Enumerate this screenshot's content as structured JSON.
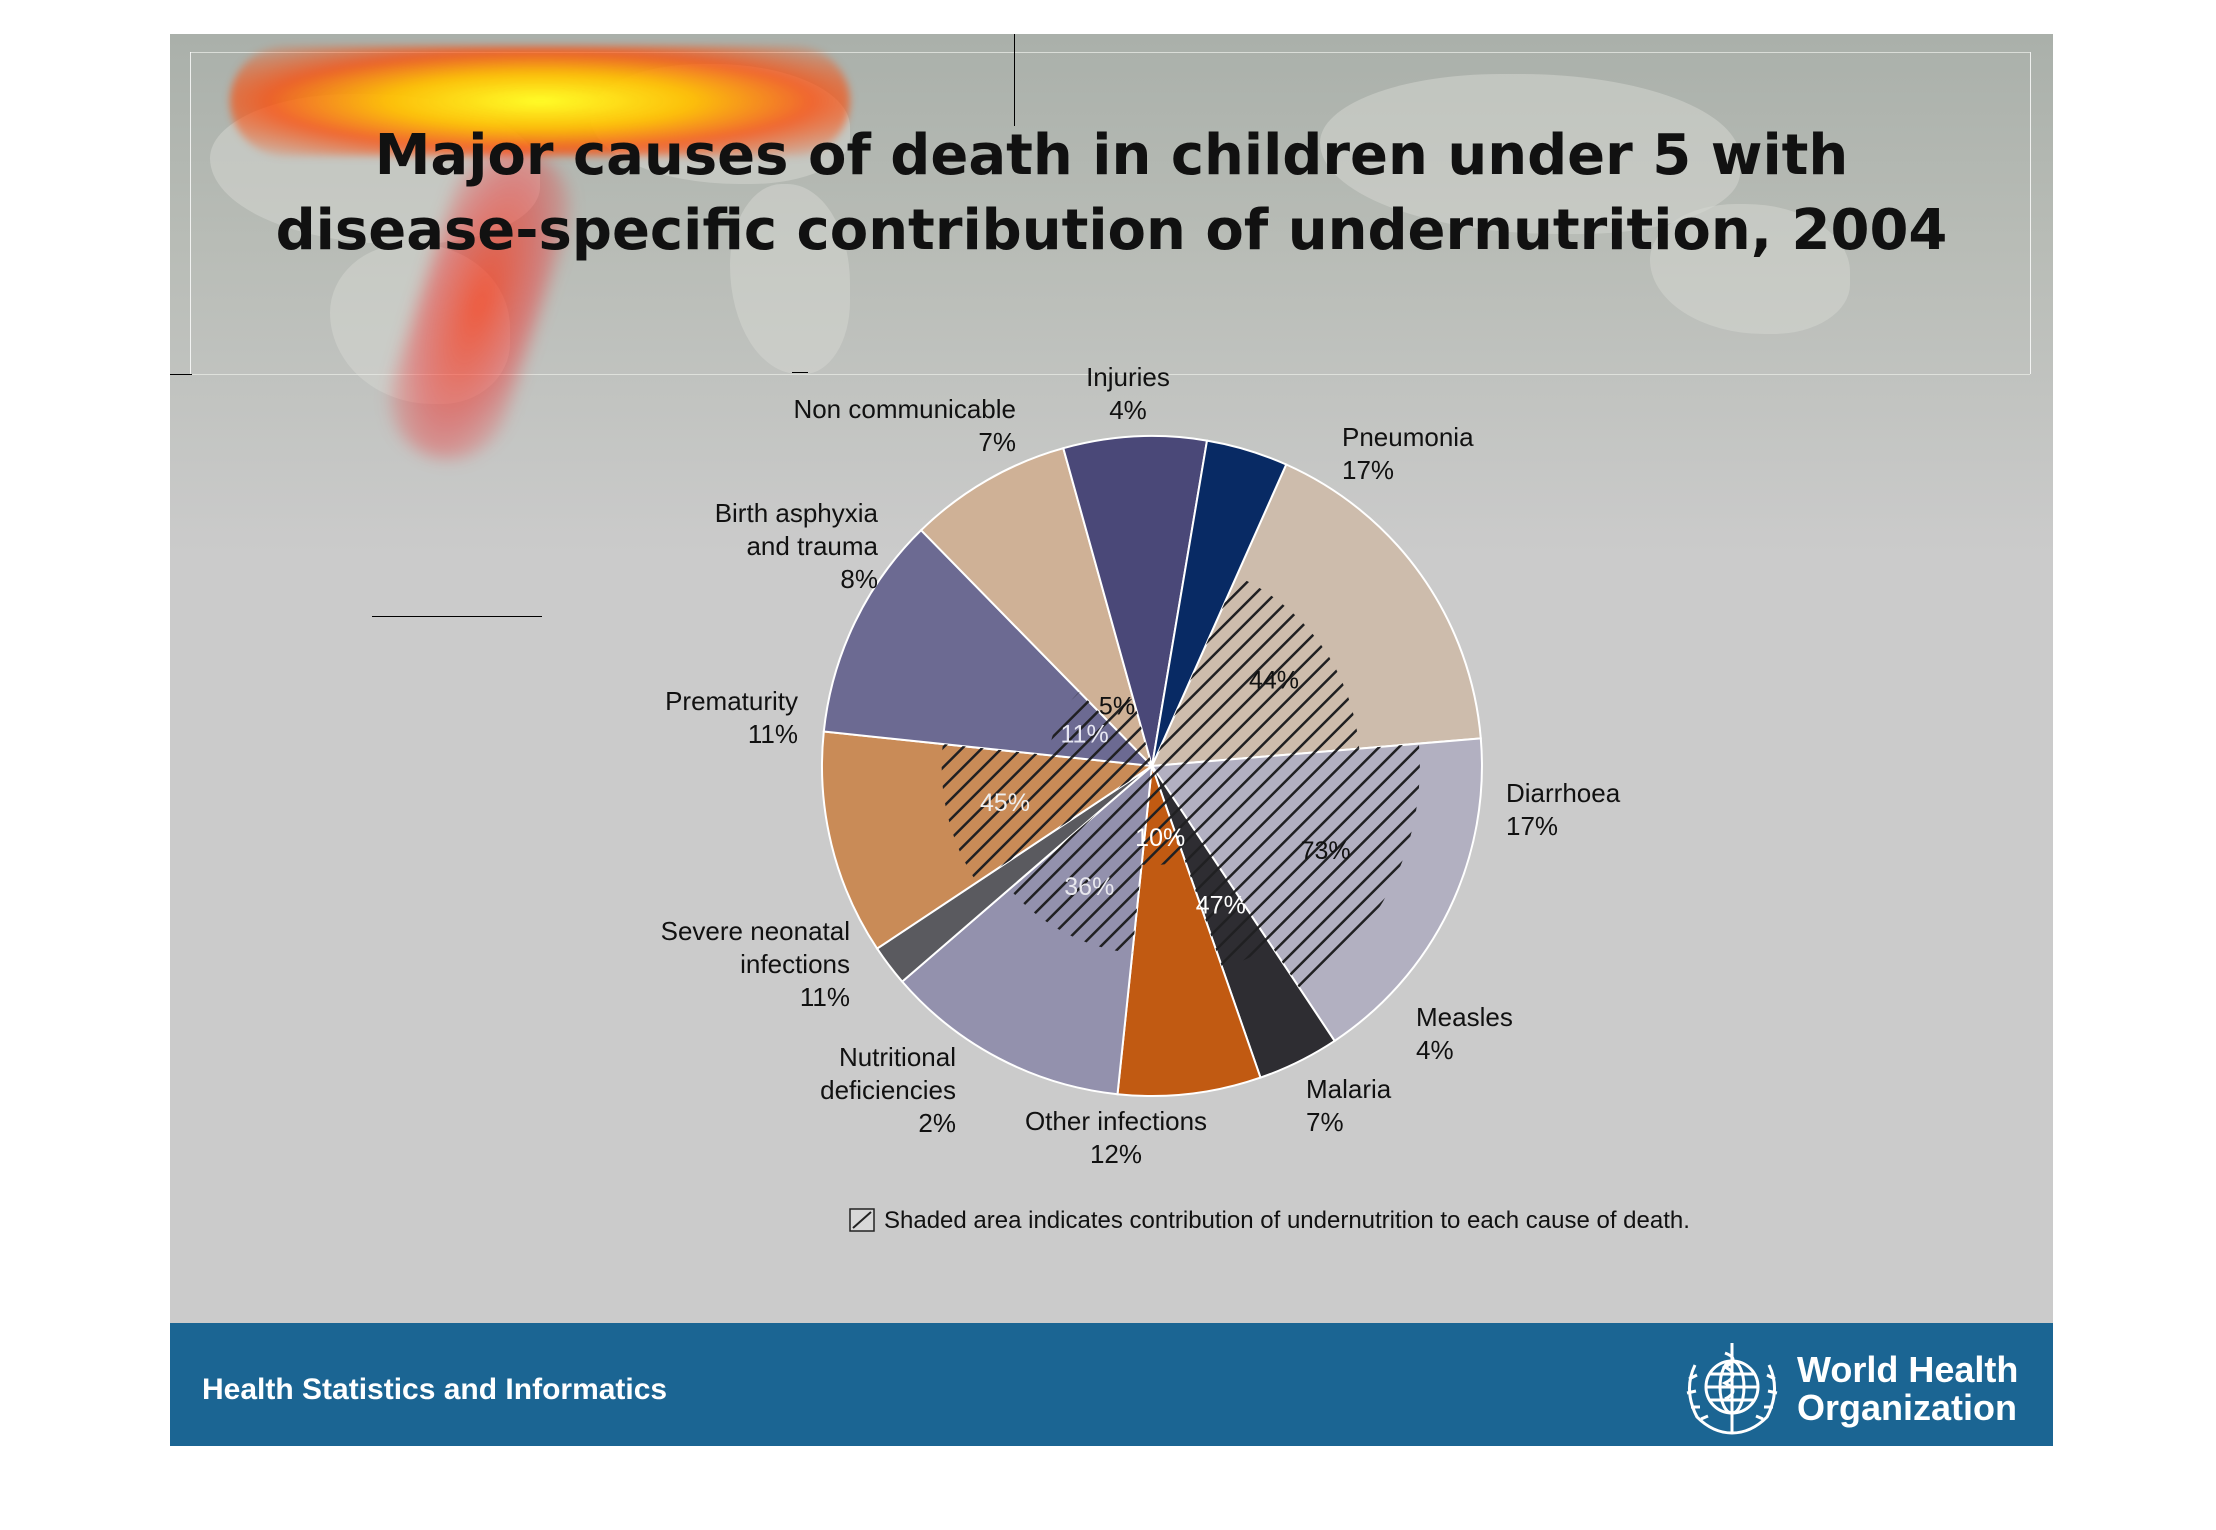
{
  "slide": {
    "title_line1": "Major causes of death in children under 5 with",
    "title_line2": "disease-specific contribution of undernutrition, 2004",
    "footer_text": "Health Statistics and Informatics",
    "org_line1": "World Health",
    "org_line2": "Organization",
    "footer_color": "#1b6593"
  },
  "chart_data": {
    "type": "pie",
    "title": "Major causes of death in children under 5 with disease-specific contribution of undernutrition, 2004",
    "slices": [
      {
        "label": "Pneumonia",
        "pct": "17%",
        "value": 17,
        "color": "#cdbcac",
        "undernutrition": "44%",
        "undernutrition_share": 44
      },
      {
        "label": "Diarrhoea",
        "pct": "17%",
        "value": 17,
        "color": "#b2b0c1",
        "undernutrition": "73%",
        "undernutrition_share": 73
      },
      {
        "label": "Measles",
        "pct": "4%",
        "value": 4,
        "color": "#2e2d32",
        "undernutrition": "47%",
        "undernutrition_share": 47
      },
      {
        "label": "Malaria",
        "pct": "7%",
        "value": 7,
        "color": "#c15a12",
        "undernutrition": "10%",
        "undernutrition_share": 10
      },
      {
        "label": "Other infections",
        "pct": "12%",
        "value": 12,
        "color": "#9391ad",
        "undernutrition": "36%",
        "undernutrition_share": 36
      },
      {
        "label": "Nutritional deficiencies",
        "pct": "2%",
        "value": 2,
        "color": "#5a5a5f",
        "undernutrition": "",
        "undernutrition_share": 0
      },
      {
        "label": "Severe neonatal infections",
        "pct": "11%",
        "value": 11,
        "color": "#c98b57",
        "undernutrition": "45%",
        "undernutrition_share": 45
      },
      {
        "label": "Prematurity",
        "pct": "11%",
        "value": 11,
        "color": "#6c6a92",
        "undernutrition": "11%",
        "undernutrition_share": 11
      },
      {
        "label": "Birth asphyxia and trauma",
        "pct": "8%",
        "value": 8,
        "color": "#cfb196",
        "undernutrition": "5%",
        "undernutrition_share": 5
      },
      {
        "label": "Non communicable",
        "pct": "7%",
        "value": 7,
        "color": "#4a4878",
        "undernutrition": "",
        "undernutrition_share": 0
      },
      {
        "label": "Injuries",
        "pct": "4%",
        "value": 4,
        "color": "#082a64",
        "undernutrition": "",
        "undernutrition_share": 0
      }
    ],
    "legend_note": "Shaded area indicates contribution of undernutrition to each cause of death."
  }
}
